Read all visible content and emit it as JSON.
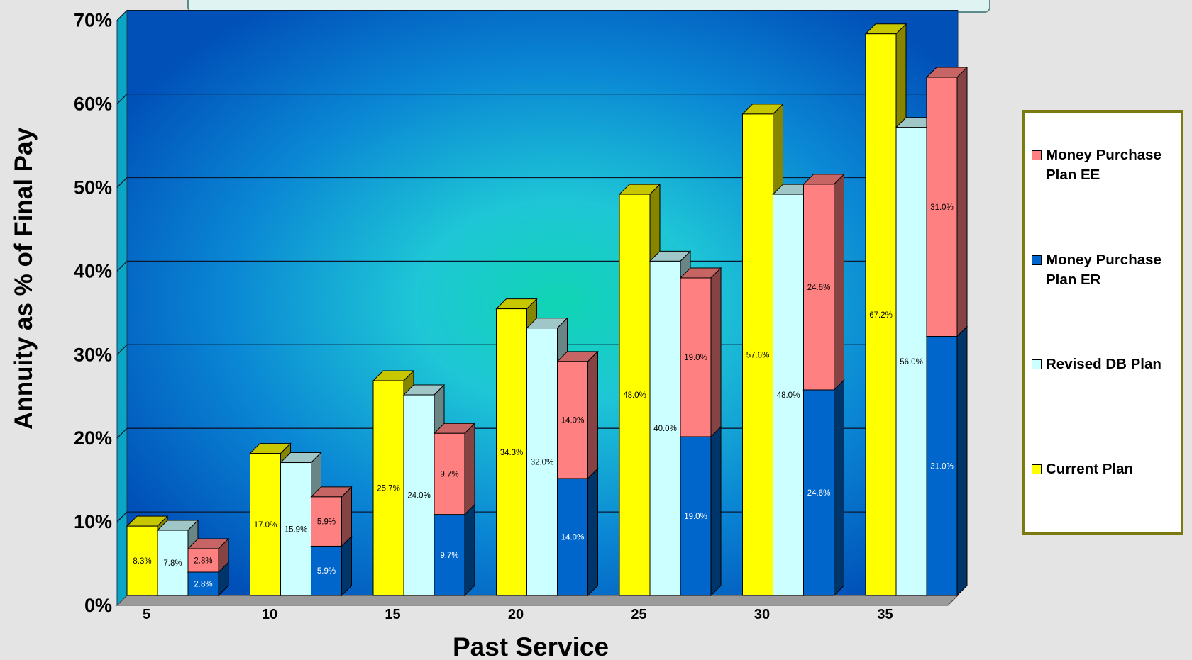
{
  "chart_data": {
    "type": "bar",
    "stacked_groups": true,
    "categories": [
      "5",
      "10",
      "15",
      "20",
      "25",
      "30",
      "35"
    ],
    "series": [
      {
        "name": "Current Plan",
        "color": "#ffff00",
        "values": [
          8.3,
          17.0,
          25.7,
          34.3,
          48.0,
          57.6,
          67.2
        ],
        "labels": [
          "8.3%",
          "17.0%",
          "25.7%",
          "34.3%",
          "48.0%",
          "57.6%",
          "67.2%"
        ]
      },
      {
        "name": "Revised DB Plan",
        "color": "#ccffff",
        "values": [
          7.8,
          15.9,
          24.0,
          32.0,
          40.0,
          48.0,
          56.0
        ],
        "labels": [
          "7.8%",
          "15.9%",
          "24.0%",
          "32.0%",
          "40.0%",
          "48.0%",
          "56.0%"
        ]
      },
      {
        "name": "Money Purchase Plan ER",
        "color": "#0066cc",
        "values": [
          2.8,
          5.9,
          9.7,
          14.0,
          19.0,
          24.6,
          31.0
        ],
        "labels": [
          "2.8%",
          "5.9%",
          "9.7%",
          "14.0%",
          "19.0%",
          "24.6%",
          "31.0%"
        ]
      },
      {
        "name": "Money Purchase Plan EE",
        "color": "#ff8080",
        "values": [
          2.8,
          5.9,
          9.7,
          14.0,
          19.0,
          24.6,
          31.0
        ],
        "labels": [
          "2.8%",
          "5.9%",
          "9.7%",
          "14.0%",
          "19.0%",
          "24.6%",
          "31.0%"
        ]
      }
    ],
    "title": "",
    "xlabel": "Past Service",
    "ylabel": "Annuity as % of Final Pay",
    "ylim": [
      0,
      70
    ],
    "yticks": [
      "0%",
      "10%",
      "20%",
      "30%",
      "40%",
      "50%",
      "60%",
      "70%"
    ],
    "grid": true,
    "legend_position": "right",
    "legend_order": [
      "Money Purchase Plan EE",
      "Money Purchase Plan ER",
      "Revised DB Plan",
      "Current Plan"
    ],
    "legend_labels": [
      [
        "Money Purchase",
        "Plan EE"
      ],
      [
        "Money Purchase",
        "Plan ER"
      ],
      [
        "Revised DB Plan"
      ],
      [
        "Current Plan"
      ]
    ]
  }
}
